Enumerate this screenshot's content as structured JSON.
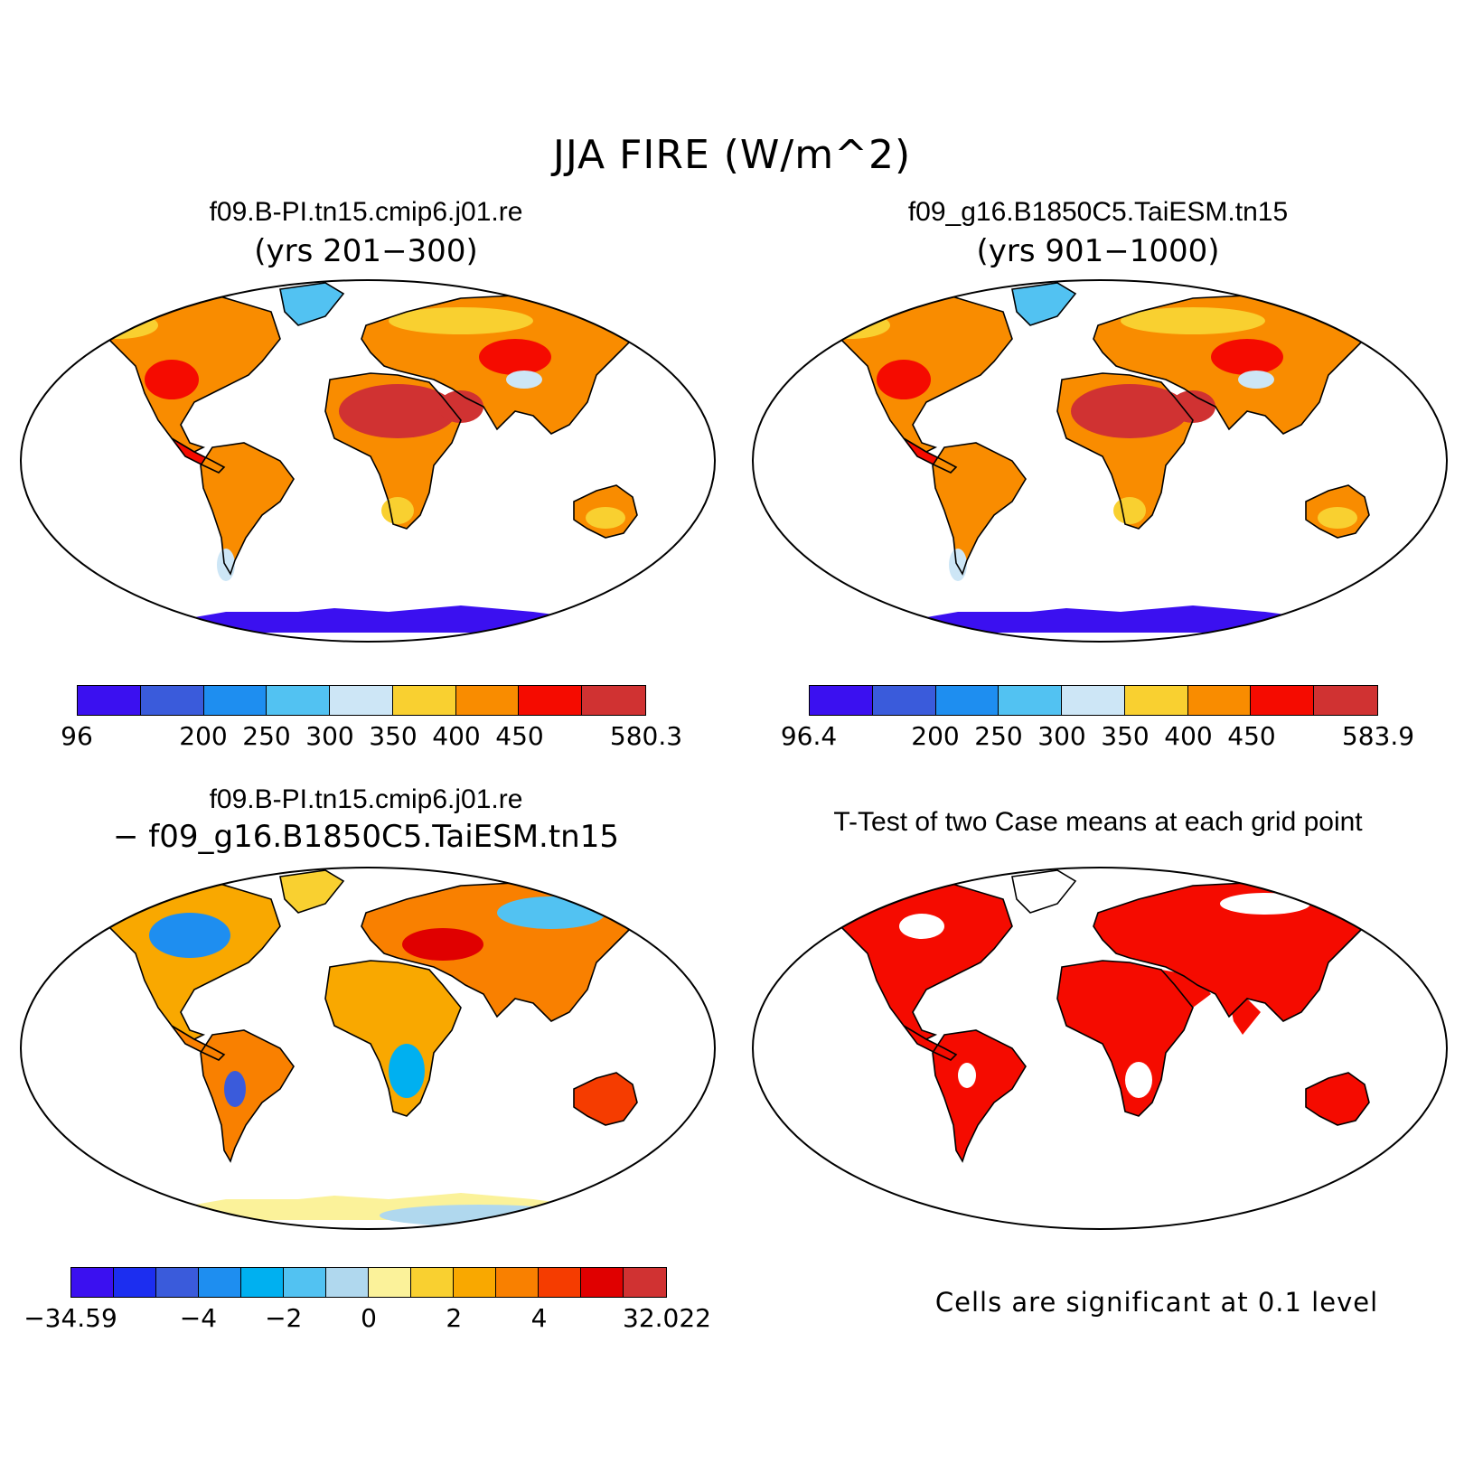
{
  "title": "JJA FIRE (W/m^2)",
  "panels": [
    {
      "title": "f09.B-PI.tn15.cmip6.j01.re",
      "subtitle": "(yrs 201−300)",
      "colorbar": {
        "colors": [
          "#3b10f0",
          "#3a5bdb",
          "#1e8ef0",
          "#52c2f2",
          "#cde6f6",
          "#f9d030",
          "#f98c00",
          "#f50b00",
          "#d03232"
        ],
        "labels": [
          "96",
          "200",
          "250",
          "300",
          "350",
          "400",
          "450",
          "580.3"
        ],
        "label_positions": [
          0,
          2,
          3,
          4,
          5,
          6,
          7,
          9
        ]
      }
    },
    {
      "title": "f09_g16.B1850C5.TaiESM.tn15",
      "subtitle": "(yrs 901−1000)",
      "colorbar": {
        "colors": [
          "#3b10f0",
          "#3a5bdb",
          "#1e8ef0",
          "#52c2f2",
          "#cde6f6",
          "#f9d030",
          "#f98c00",
          "#f50b00",
          "#d03232"
        ],
        "labels": [
          "96.4",
          "200",
          "250",
          "300",
          "350",
          "400",
          "450",
          "583.9"
        ],
        "label_positions": [
          0,
          2,
          3,
          4,
          5,
          6,
          7,
          9
        ]
      }
    },
    {
      "title": "f09.B-PI.tn15.cmip6.j01.re",
      "subtitle": "− f09_g16.B1850C5.TaiESM.tn15",
      "colorbar": {
        "colors": [
          "#3b10f0",
          "#1c2ef0",
          "#3a5bdb",
          "#1e8ef0",
          "#00b0f0",
          "#52c2f2",
          "#b0d8ee",
          "#fbf29a",
          "#f9d030",
          "#f9a800",
          "#f98000",
          "#f53c00",
          "#e00000",
          "#d03232"
        ],
        "labels": [
          "−34.59",
          "−4",
          "−2",
          "0",
          "2",
          "4",
          "32.022"
        ],
        "label_positions": [
          0,
          3,
          5,
          7,
          9,
          11,
          14
        ]
      }
    },
    {
      "title": "T-Test of two Case means at each grid point",
      "note": "Cells are significant at 0.1 level"
    }
  ],
  "colors": {
    "ocean": "#ffffff",
    "warm": "#f98c00",
    "hot": "#d03232",
    "antarctica": "#3b10f0",
    "significant": "#f50b00"
  }
}
